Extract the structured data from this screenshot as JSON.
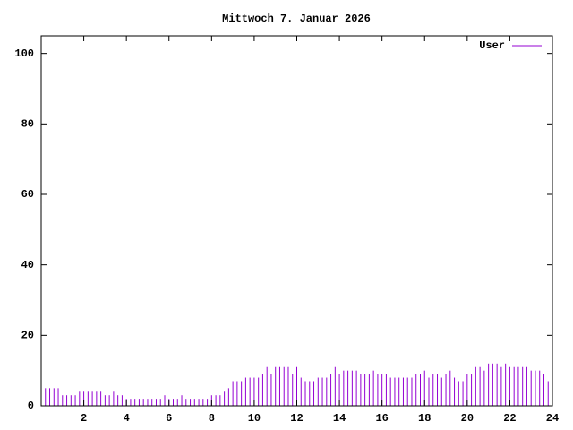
{
  "chart_data": {
    "type": "impulse",
    "title": "Mittwoch 7. Januar 2026",
    "series": [
      {
        "name": "User",
        "color": "#9400d3",
        "x": [
          0,
          0.2,
          0.4,
          0.6,
          0.8,
          1,
          1.2,
          1.4,
          1.6,
          1.8,
          2,
          2.2,
          2.4,
          2.6,
          2.8,
          3,
          3.2,
          3.4,
          3.6,
          3.8,
          4,
          4.2,
          4.4,
          4.6,
          4.8,
          5,
          5.2,
          5.4,
          5.6,
          5.8,
          6,
          6.2,
          6.4,
          6.6,
          6.8,
          7,
          7.2,
          7.4,
          7.6,
          7.8,
          8,
          8.2,
          8.4,
          8.6,
          8.8,
          9,
          9.2,
          9.4,
          9.6,
          9.8,
          10,
          10.2,
          10.4,
          10.6,
          10.8,
          11,
          11.2,
          11.4,
          11.6,
          11.8,
          12,
          12.2,
          12.4,
          12.6,
          12.8,
          13,
          13.2,
          13.4,
          13.6,
          13.8,
          14,
          14.2,
          14.4,
          14.6,
          14.8,
          15,
          15.2,
          15.4,
          15.6,
          15.8,
          16,
          16.2,
          16.4,
          16.6,
          16.8,
          17,
          17.2,
          17.4,
          17.6,
          17.8,
          18,
          18.2,
          18.4,
          18.6,
          18.8,
          19,
          19.2,
          19.4,
          19.6,
          19.8,
          20,
          20.2,
          20.4,
          20.6,
          20.8,
          21,
          21.2,
          21.4,
          21.6,
          21.8,
          22,
          22.2,
          22.4,
          22.6,
          22.8,
          23,
          23.2,
          23.4,
          23.6,
          23.8
        ],
        "values": [
          5,
          5,
          5,
          5,
          5,
          3,
          3,
          3,
          3,
          4,
          4,
          4,
          4,
          4,
          4,
          3,
          3,
          4,
          3,
          3,
          2,
          2,
          2,
          2,
          2,
          2,
          2,
          2,
          2,
          3,
          2,
          2,
          2,
          3,
          2,
          2,
          2,
          2,
          2,
          2,
          3,
          3,
          3,
          4,
          5,
          7,
          7,
          7,
          8,
          8,
          8,
          8,
          9,
          11,
          9,
          11,
          11,
          11,
          11,
          9,
          11,
          8,
          7,
          7,
          7,
          8,
          8,
          8,
          9,
          11,
          9,
          10,
          10,
          10,
          10,
          9,
          9,
          9,
          10,
          9,
          9,
          9,
          8,
          8,
          8,
          8,
          8,
          8,
          9,
          9,
          10,
          8,
          9,
          9,
          8,
          9,
          10,
          8,
          7,
          7,
          9,
          9,
          11,
          11,
          10,
          12,
          12,
          12,
          11,
          12,
          11,
          11,
          11,
          11,
          11,
          10,
          10,
          10,
          9,
          7
        ]
      }
    ],
    "xlim": [
      0,
      24
    ],
    "xticks": [
      2,
      4,
      6,
      8,
      10,
      12,
      14,
      16,
      18,
      20,
      22,
      24
    ],
    "ylim": [
      0,
      105
    ],
    "yticks": [
      0,
      20,
      40,
      60,
      80,
      100
    ],
    "legend": "top-right"
  }
}
